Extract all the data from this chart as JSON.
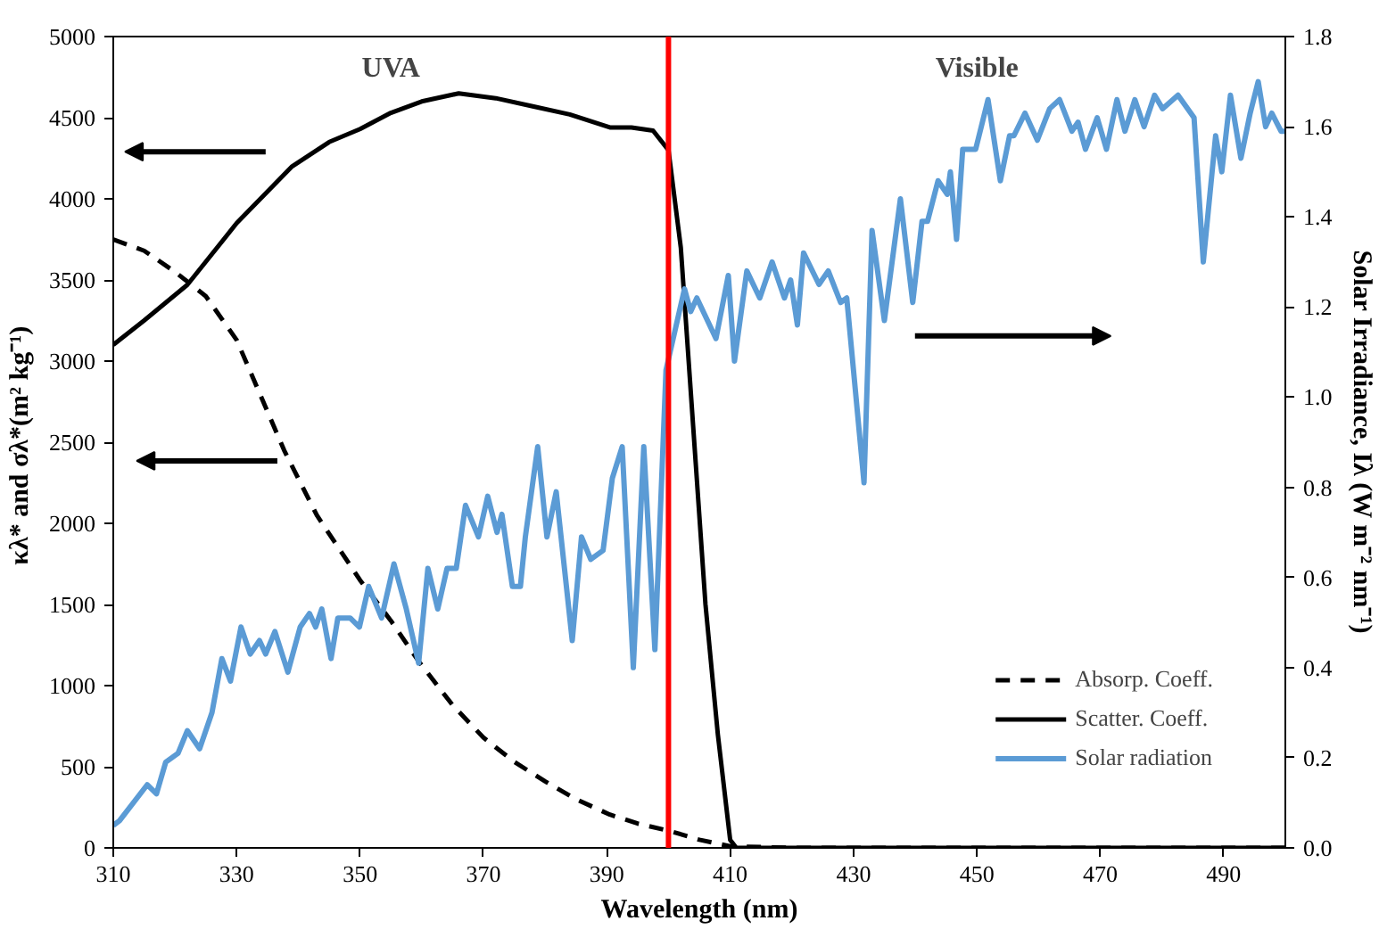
{
  "chart_data": {
    "type": "line",
    "xlabel": "Wavelength (nm)",
    "ylabel": "κλ* and  σλ*(m² kg⁻¹)",
    "y2label": "Solar Irradiance, Iλ (W m⁻² nm⁻¹)",
    "xlim": [
      310,
      500
    ],
    "xticks": [
      310,
      330,
      350,
      370,
      390,
      410,
      430,
      450,
      470,
      490
    ],
    "ylim": [
      0,
      5000
    ],
    "yticks": [
      0,
      500,
      1000,
      1500,
      2000,
      2500,
      3000,
      3500,
      4000,
      4500,
      5000
    ],
    "y2lim": [
      0,
      1.8
    ],
    "y2ticks": [
      {
        "value": 0,
        "label": "0.0"
      },
      {
        "value": 0.2,
        "label": "0.2"
      },
      {
        "value": 0.4,
        "label": "0.4"
      },
      {
        "value": 0.6,
        "label": "0.6"
      },
      {
        "value": 0.8,
        "label": "0.8"
      },
      {
        "value": 1.0,
        "label": "1.0"
      },
      {
        "value": 1.2,
        "label": "1.2"
      },
      {
        "value": 1.4,
        "label": "1.4"
      },
      {
        "value": 1.6,
        "label": "1.6"
      },
      {
        "value": 1.8,
        "label": "1.8"
      }
    ],
    "grid": false,
    "legend": "bottom right",
    "marker": "none",
    "annotations": [
      "UVA",
      "Visible"
    ],
    "ref_lines": [
      {
        "axis": "x",
        "value": 400,
        "label": null,
        "color": "#ff0000",
        "line_style": "solid"
      }
    ],
    "series": [
      {
        "name": "Absorp. Coeff.",
        "color": "#000000",
        "line_style": "dashed",
        "x": [
          310,
          315,
          320,
          325,
          330,
          337.7,
          343,
          350,
          355,
          359.5,
          365,
          370,
          375,
          380,
          385,
          390.5,
          395,
          400.6,
          405,
          410,
          420,
          500
        ],
        "values": [
          3750,
          3680,
          3550,
          3400,
          3130,
          2450,
          2050,
          1650,
          1400,
          1150,
          880,
          680,
          530,
          410,
          300,
          205,
          150,
          100,
          50,
          10,
          0,
          0
        ]
      },
      {
        "name": "Scatter. Coeff.",
        "color": "#000000",
        "line_style": "solid",
        "x": [
          310,
          315,
          322,
          330,
          339,
          345,
          350,
          355,
          360,
          366,
          372,
          378,
          384,
          390.5,
          394,
          397.5,
          400,
          402,
          404,
          406,
          408,
          410,
          411,
          500
        ],
        "values": [
          3100,
          3250,
          3470,
          3850,
          4200,
          4350,
          4430,
          4530,
          4600,
          4650,
          4620,
          4570,
          4520,
          4440,
          4440,
          4420,
          4300,
          3700,
          2600,
          1500,
          700,
          50,
          0,
          0
        ]
      },
      {
        "name": "Solar radiation",
        "color": "#5b9bd5",
        "line_style": "solid",
        "axis": "y2",
        "x": [
          310,
          311,
          315.5,
          317,
          318.5,
          320.5,
          322,
          324,
          326,
          327.6,
          329,
          330.7,
          332.2,
          333.7,
          334.7,
          336.2,
          338.3,
          340.3,
          341.8,
          342.8,
          343.8,
          345.3,
          346.4,
          348.4,
          349.9,
          351.4,
          353.5,
          355.5,
          357.5,
          359.5,
          361,
          362.6,
          364.1,
          365.6,
          367.1,
          369.2,
          370.7,
          372.2,
          373,
          374.7,
          376,
          376.8,
          378.8,
          380.3,
          381.8,
          384.4,
          385.9,
          387.4,
          389.4,
          390.9,
          392.5,
          394.3,
          396,
          397.8,
          399.6,
          401.6,
          402.6,
          403.6,
          404.6,
          407.7,
          409.7,
          410.7,
          412.7,
          414.8,
          416.8,
          418.8,
          419.8,
          420.9,
          421.9,
          424.4,
          425.9,
          427.9,
          428.9,
          431.7,
          433,
          435,
          437.6,
          439.6,
          441.1,
          442,
          443.7,
          445.2,
          445.7,
          446.7,
          447.7,
          449.8,
          451.8,
          453.8,
          455.3,
          456,
          457.8,
          459.8,
          461.8,
          463.4,
          465.4,
          466.4,
          467.6,
          469.5,
          471,
          472.7,
          474,
          475.6,
          477.1,
          478.8,
          480.1,
          482.6,
          485.2,
          486.7,
          488.7,
          489.7,
          491.1,
          492.8,
          494.3,
          495.6,
          496.8,
          497.8,
          499.3,
          500
        ],
        "values": [
          0.05,
          0.06,
          0.14,
          0.12,
          0.19,
          0.21,
          0.26,
          0.22,
          0.3,
          0.42,
          0.37,
          0.49,
          0.43,
          0.46,
          0.43,
          0.48,
          0.39,
          0.49,
          0.52,
          0.49,
          0.53,
          0.42,
          0.51,
          0.51,
          0.49,
          0.58,
          0.51,
          0.63,
          0.53,
          0.41,
          0.62,
          0.53,
          0.62,
          0.62,
          0.76,
          0.69,
          0.78,
          0.7,
          0.74,
          0.58,
          0.58,
          0.69,
          0.89,
          0.69,
          0.79,
          0.46,
          0.69,
          0.64,
          0.66,
          0.82,
          0.89,
          0.4,
          0.89,
          0.44,
          1.06,
          1.18,
          1.24,
          1.19,
          1.22,
          1.13,
          1.27,
          1.08,
          1.28,
          1.22,
          1.3,
          1.22,
          1.26,
          1.16,
          1.32,
          1.25,
          1.28,
          1.21,
          1.22,
          0.81,
          1.37,
          1.17,
          1.44,
          1.21,
          1.39,
          1.39,
          1.48,
          1.45,
          1.5,
          1.35,
          1.55,
          1.55,
          1.66,
          1.48,
          1.58,
          1.58,
          1.63,
          1.57,
          1.64,
          1.66,
          1.59,
          1.61,
          1.55,
          1.62,
          1.55,
          1.66,
          1.59,
          1.66,
          1.6,
          1.67,
          1.64,
          1.67,
          1.62,
          1.3,
          1.58,
          1.5,
          1.67,
          1.53,
          1.63,
          1.7,
          1.6,
          1.63,
          1.59,
          1.59
        ]
      }
    ]
  }
}
